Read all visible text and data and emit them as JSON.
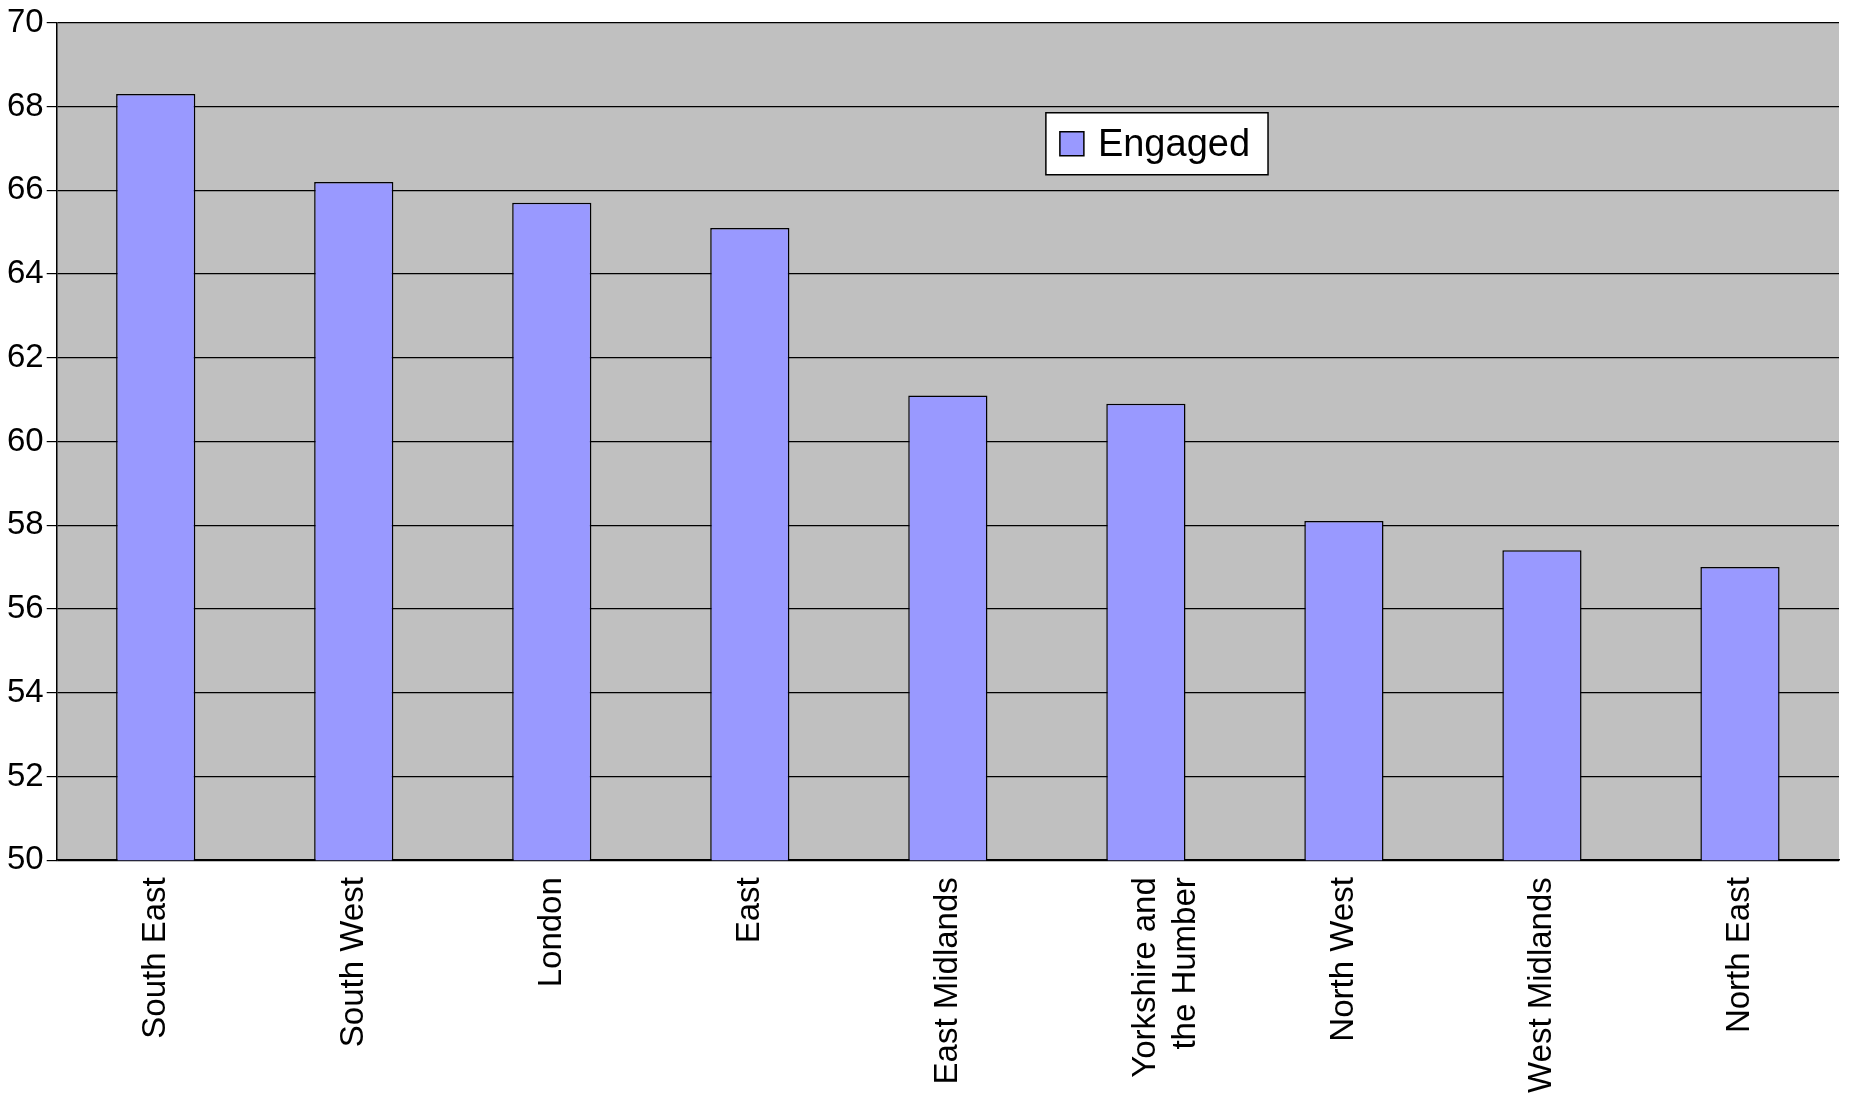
{
  "chart_data": {
    "type": "bar",
    "categories": [
      "South East",
      "South West",
      "London",
      "East",
      "East Midlands",
      "Yorkshire and the Humber",
      "North West",
      "West Midlands",
      "North East"
    ],
    "series": [
      {
        "name": "Engaged",
        "color": "#9999ff",
        "values": [
          68.3,
          66.2,
          65.7,
          65.1,
          61.1,
          60.9,
          58.1,
          57.4,
          57.0
        ]
      }
    ],
    "ylim": [
      50,
      70
    ],
    "yticks": [
      50,
      52,
      54,
      56,
      58,
      60,
      62,
      64,
      66,
      68,
      70
    ],
    "grid": "y",
    "legend": "top right"
  }
}
